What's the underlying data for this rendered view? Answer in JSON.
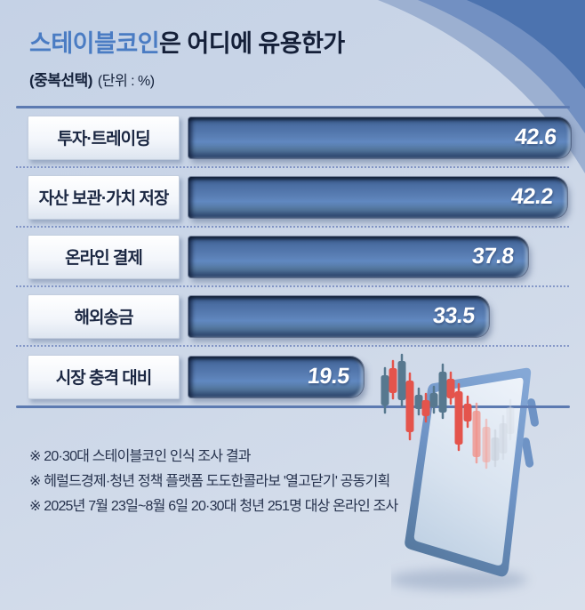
{
  "header": {
    "title_accent": "스테이블코인",
    "title_rest": "은 어디에 유용한가",
    "note_multi_select": "(중복선택)",
    "note_unit": "(단위 : %)"
  },
  "chart_data": {
    "type": "bar",
    "orientation": "horizontal",
    "title": "스테이블코인은 어디에 유용한가",
    "subtitle": "중복선택, 단위: %",
    "unit": "%",
    "categories": [
      "투자·트레이딩",
      "자산 보관·가치 저장",
      "온라인 결제",
      "해외송금",
      "시장 충격 대비"
    ],
    "values": [
      42.6,
      42.2,
      37.8,
      33.5,
      19.5
    ],
    "xlim": [
      0,
      45
    ],
    "value_labels": "inside-bar-right",
    "grid": false,
    "legend": false
  },
  "footnotes": [
    "※ 20·30대 스테이블코인 인식 조사 결과",
    "※ 헤럴드경제·청년 정책 플랫폼 도도한콜라보 '열고닫기' 공동기획",
    "※ 2025년 7월 23일~8월 6일 20·30대 청년 251명 대상 온라인 조사"
  ],
  "illustration": {
    "items": [
      "candlestick-chart",
      "smartphone"
    ]
  },
  "colors": {
    "background": "#cdd8e9",
    "title_accent": "#4a7cc3",
    "title_text": "#141f38",
    "bar_fill": "#5a7fb5",
    "bar_fill_dark": "#34537f",
    "value_text": "#ffffff",
    "label_text": "#1b2742",
    "axis_line": "#5c7ab1",
    "dotted_separator": "#6c82bc",
    "footnote_text": "#26324d",
    "candle_red": "#e4544c",
    "candle_blue": "#57788f",
    "phone_frame": "#6f94c6",
    "phone_screen": "#dce6f2",
    "corner_curve_dark": "#4c73af",
    "corner_curve_mid": "#7290c2",
    "corner_curve_light": "#9cb0d1"
  }
}
